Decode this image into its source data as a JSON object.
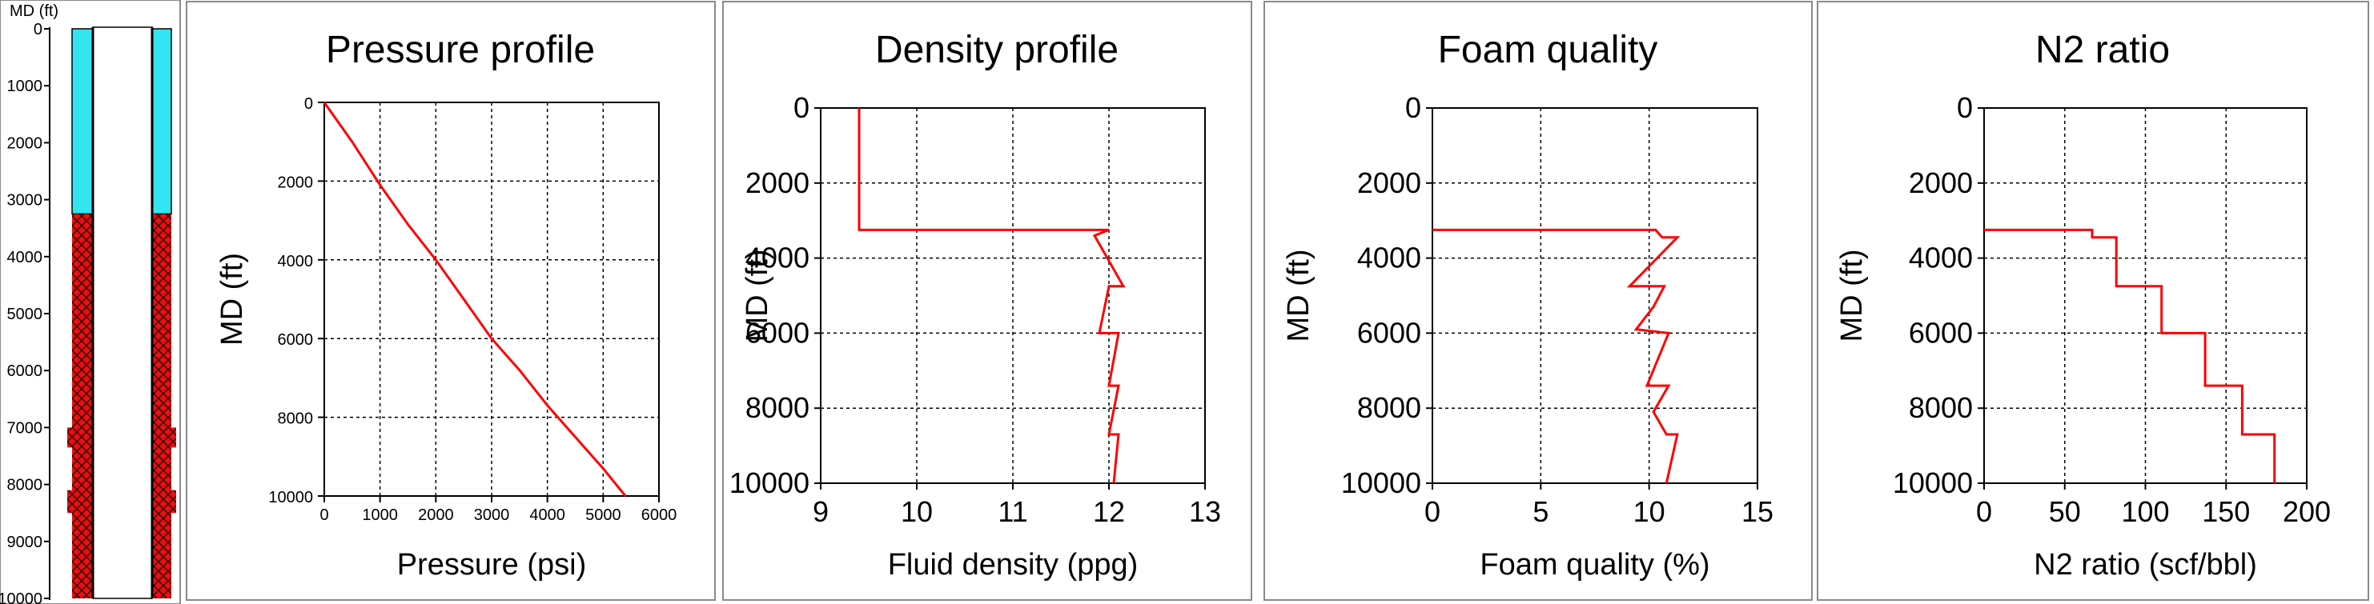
{
  "wellbore": {
    "axis_label": "MD (ft)",
    "ylim": [
      0,
      10000
    ],
    "tick_labels": [
      "0",
      "1000",
      "2000",
      "3000",
      "4000",
      "5000",
      "6000",
      "7000",
      "8000",
      "9000",
      "10000"
    ],
    "cyan_zone_md": [
      0,
      3250
    ],
    "red_zone_md": [
      3250,
      10000
    ],
    "colors": {
      "cyan": "#33e5f0",
      "red": "#e81010",
      "hatch": "#400000"
    }
  },
  "chart_data": [
    {
      "type": "line",
      "title": "Pressure profile",
      "xlabel": "Pressure (psi)",
      "ylabel": "MD (ft)",
      "xlim": [
        0,
        6000
      ],
      "ylim": [
        0,
        10000
      ],
      "y_inverted": true,
      "xtick_labels": [
        "0",
        "1000",
        "2000",
        "3000",
        "4000",
        "5000",
        "6000"
      ],
      "ytick_labels": [
        "0",
        "2000",
        "4000",
        "6000",
        "8000",
        "10000"
      ],
      "grid": true,
      "line_color": "#ff0000",
      "points": [
        [
          0,
          0
        ],
        [
          500,
          1000
        ],
        [
          1000,
          2100
        ],
        [
          1500,
          3100
        ],
        [
          2000,
          4000
        ],
        [
          2500,
          5000
        ],
        [
          3000,
          6000
        ],
        [
          3500,
          6800
        ],
        [
          4000,
          7700
        ],
        [
          4500,
          8500
        ],
        [
          5000,
          9300
        ],
        [
          5400,
          10000
        ]
      ]
    },
    {
      "type": "line",
      "title": "Density profile",
      "xlabel": "Fluid density (ppg)",
      "ylabel": "MD (ft)",
      "xlim": [
        9,
        13
      ],
      "ylim": [
        0,
        10000
      ],
      "y_inverted": true,
      "xtick_labels": [
        "9",
        "10",
        "11",
        "12",
        "13"
      ],
      "ytick_labels": [
        "0",
        "2000",
        "4000",
        "6000",
        "8000",
        "10000"
      ],
      "grid": true,
      "line_color": "#ff0000",
      "points": [
        [
          9.4,
          0
        ],
        [
          9.4,
          3250
        ],
        [
          12,
          3250
        ],
        [
          11.85,
          3400
        ],
        [
          12.15,
          4750
        ],
        [
          12,
          4750
        ],
        [
          11.9,
          6000
        ],
        [
          12.1,
          6000
        ],
        [
          12.0,
          7400
        ],
        [
          12.1,
          7400
        ],
        [
          12.0,
          8700
        ],
        [
          12.1,
          8700
        ],
        [
          12.05,
          10000
        ]
      ]
    },
    {
      "type": "line",
      "title": "Foam quality",
      "xlabel": "Foam quality (%)",
      "ylabel": "MD (ft)",
      "xlim": [
        0,
        15
      ],
      "ylim": [
        0,
        10000
      ],
      "y_inverted": true,
      "xtick_labels": [
        "0",
        "5",
        "10",
        "15"
      ],
      "ytick_labels": [
        "0",
        "2000",
        "4000",
        "6000",
        "8000",
        "10000"
      ],
      "grid": true,
      "line_color": "#ff0000",
      "points": [
        [
          0,
          3250
        ],
        [
          10.3,
          3250
        ],
        [
          10.6,
          3450
        ],
        [
          11.3,
          3450
        ],
        [
          9.1,
          4750
        ],
        [
          10.7,
          4750
        ],
        [
          10.2,
          5300
        ],
        [
          9.4,
          5900
        ],
        [
          10.9,
          6000
        ],
        [
          9.9,
          7400
        ],
        [
          10.9,
          7400
        ],
        [
          10.2,
          8100
        ],
        [
          10.8,
          8700
        ],
        [
          11.3,
          8700
        ],
        [
          10.8,
          10000
        ]
      ]
    },
    {
      "type": "line",
      "title": "N2 ratio",
      "xlabel": "N2 ratio (scf/bbl)",
      "ylabel": "MD (ft)",
      "xlim": [
        0,
        200
      ],
      "ylim": [
        0,
        10000
      ],
      "y_inverted": true,
      "xtick_labels": [
        "0",
        "50",
        "100",
        "150",
        "200"
      ],
      "ytick_labels": [
        "0",
        "2000",
        "4000",
        "6000",
        "8000",
        "10000"
      ],
      "grid": true,
      "line_color": "#ff0000",
      "points": [
        [
          0,
          3250
        ],
        [
          67,
          3250
        ],
        [
          67,
          3450
        ],
        [
          82,
          3450
        ],
        [
          82,
          4750
        ],
        [
          110,
          4750
        ],
        [
          110,
          6000
        ],
        [
          137,
          6000
        ],
        [
          137,
          7400
        ],
        [
          160,
          7400
        ],
        [
          160,
          8700
        ],
        [
          180,
          8700
        ],
        [
          180,
          10000
        ]
      ]
    }
  ]
}
